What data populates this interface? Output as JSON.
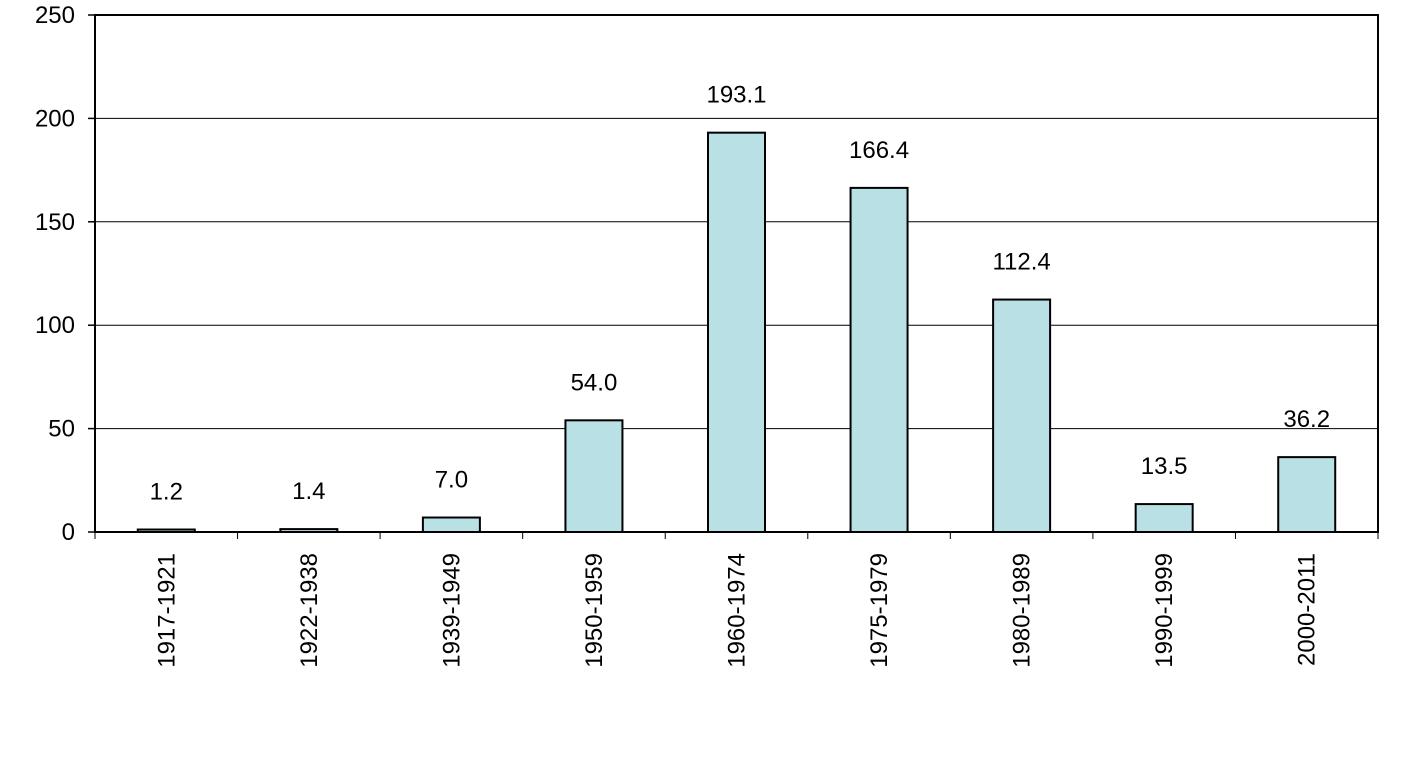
{
  "chart_data": {
    "type": "bar",
    "categories": [
      "1917-1921",
      "1922-1938",
      "1939-1949",
      "1950-1959",
      "1960-1974",
      "1975-1979",
      "1980-1989",
      "1990-1999",
      "2000-2011"
    ],
    "values": [
      1.2,
      1.4,
      7.0,
      54.0,
      193.1,
      166.4,
      112.4,
      13.5,
      36.2
    ],
    "data_labels": [
      "1.2",
      "1.4",
      "7.0",
      "54.0",
      "193.1",
      "166.4",
      "112.4",
      "13.5",
      "36.2"
    ],
    "y_ticks": [
      0,
      50,
      100,
      150,
      200,
      250
    ],
    "ylim": [
      0,
      250
    ],
    "title": "",
    "xlabel": "",
    "ylabel": "",
    "grid": true,
    "legend": "none",
    "colors": {
      "bar_fill": "#b9e0e4",
      "bar_stroke": "#000000",
      "grid": "#000000"
    }
  }
}
